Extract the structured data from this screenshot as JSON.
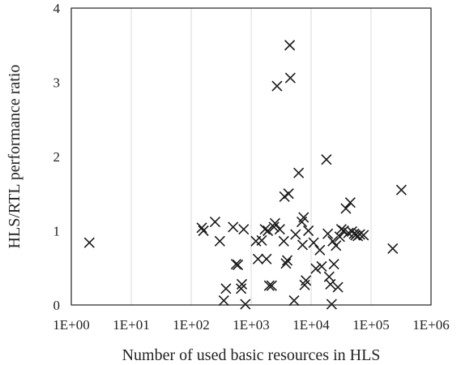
{
  "chart_data": {
    "type": "scatter",
    "title": "",
    "xlabel": "Number of used basic resources in HLS",
    "ylabel": "HLS/RTL performance ratio",
    "x_scale": "log10",
    "xlim": [
      1,
      1000000
    ],
    "ylim": [
      0,
      4
    ],
    "x_ticks": [
      1,
      10,
      100,
      1000,
      10000,
      100000,
      1000000
    ],
    "x_tick_labels": [
      "1E+00",
      "1E+01",
      "1E+02",
      "1E+03",
      "1E+04",
      "1E+05",
      "1E+06"
    ],
    "y_ticks": [
      0,
      1,
      2,
      3,
      4
    ],
    "y_tick_labels": [
      "0",
      "1",
      "2",
      "3",
      "4"
    ],
    "grid": "vertical",
    "marker": "x",
    "legend": "none",
    "series": [
      {
        "points": [
          [
            2,
            0.84
          ],
          [
            150,
            1.04
          ],
          [
            160,
            1.0
          ],
          [
            250,
            1.12
          ],
          [
            300,
            0.86
          ],
          [
            350,
            0.06
          ],
          [
            380,
            0.22
          ],
          [
            500,
            1.05
          ],
          [
            560,
            0.55
          ],
          [
            600,
            0.54
          ],
          [
            680,
            0.22
          ],
          [
            700,
            0.28
          ],
          [
            750,
            1.02
          ],
          [
            800,
            0.01
          ],
          [
            1200,
            0.86
          ],
          [
            1300,
            0.62
          ],
          [
            1500,
            0.87
          ],
          [
            1700,
            1.02
          ],
          [
            1800,
            0.62
          ],
          [
            1900,
            1.0
          ],
          [
            2000,
            0.26
          ],
          [
            2200,
            0.26
          ],
          [
            2400,
            1.05
          ],
          [
            2500,
            1.1
          ],
          [
            2700,
            2.95
          ],
          [
            3000,
            1.02
          ],
          [
            3500,
            0.86
          ],
          [
            3600,
            1.46
          ],
          [
            3800,
            0.56
          ],
          [
            4000,
            0.6
          ],
          [
            4200,
            1.5
          ],
          [
            4400,
            3.5
          ],
          [
            4500,
            3.06
          ],
          [
            5200,
            0.06
          ],
          [
            5500,
            0.95
          ],
          [
            6200,
            1.78
          ],
          [
            7000,
            1.12
          ],
          [
            7200,
            0.81
          ],
          [
            7500,
            1.18
          ],
          [
            7800,
            0.27
          ],
          [
            8200,
            0.33
          ],
          [
            9000,
            1.0
          ],
          [
            11000,
            0.84
          ],
          [
            12000,
            0.49
          ],
          [
            14000,
            0.74
          ],
          [
            15000,
            0.52
          ],
          [
            18000,
            1.96
          ],
          [
            19000,
            0.96
          ],
          [
            20000,
            0.38
          ],
          [
            21000,
            0.28
          ],
          [
            22000,
            0.01
          ],
          [
            23000,
            0.86
          ],
          [
            24000,
            0.55
          ],
          [
            26000,
            0.8
          ],
          [
            28000,
            0.24
          ],
          [
            30000,
            0.92
          ],
          [
            32000,
            1.02
          ],
          [
            35000,
            1.0
          ],
          [
            38000,
            1.3
          ],
          [
            42000,
            0.97
          ],
          [
            45000,
            1.38
          ],
          [
            48000,
            0.99
          ],
          [
            52000,
            0.96
          ],
          [
            55000,
            0.94
          ],
          [
            60000,
            0.93
          ],
          [
            65000,
            0.95
          ],
          [
            75000,
            0.94
          ],
          [
            230000,
            0.76
          ],
          [
            320000,
            1.55
          ]
        ]
      }
    ]
  }
}
